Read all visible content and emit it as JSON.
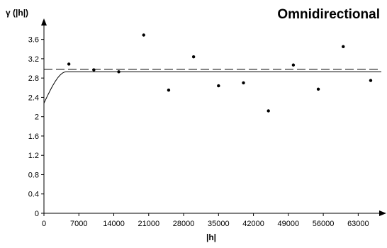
{
  "chart_data": {
    "type": "scatter",
    "title": "Omnidirectional",
    "ylabel": "γ (|h|)",
    "xlabel": "|h|",
    "xlim": [
      0,
      66500
    ],
    "ylim": [
      0,
      3.8
    ],
    "x_ticks": [
      "0",
      "7000",
      "14000",
      "21000",
      "28000",
      "35000",
      "42000",
      "49000",
      "56000",
      "63000"
    ],
    "x_tick_values": [
      0,
      7000,
      14000,
      21000,
      28000,
      35000,
      42000,
      49000,
      56000,
      63000
    ],
    "y_ticks": [
      "0",
      "0.4",
      "0.8",
      "1.2",
      "1.6",
      "2",
      "2.4",
      "2.8",
      "3.2",
      "3.6"
    ],
    "y_tick_values": [
      0,
      0.4,
      0.8,
      1.2,
      1.6,
      2,
      2.4,
      2.8,
      3.2,
      3.6
    ],
    "grid": false,
    "series": [
      {
        "points": [
          {
            "x": 5000,
            "y": 3.09
          },
          {
            "x": 10000,
            "y": 2.97
          },
          {
            "x": 15000,
            "y": 2.93
          },
          {
            "x": 20000,
            "y": 3.69
          },
          {
            "x": 25000,
            "y": 2.55
          },
          {
            "x": 30000,
            "y": 3.24
          },
          {
            "x": 35000,
            "y": 2.64
          },
          {
            "x": 40000,
            "y": 2.7
          },
          {
            "x": 45000,
            "y": 2.12
          },
          {
            "x": 50000,
            "y": 3.07
          },
          {
            "x": 55000,
            "y": 2.57
          },
          {
            "x": 60000,
            "y": 3.45
          },
          {
            "x": 65500,
            "y": 2.75
          }
        ]
      }
    ],
    "model_curve": {
      "style": "solid",
      "nugget": 2.28,
      "sill": 2.93,
      "range": 4500
    },
    "sill_line": {
      "style": "dashed",
      "y": 2.98
    }
  }
}
